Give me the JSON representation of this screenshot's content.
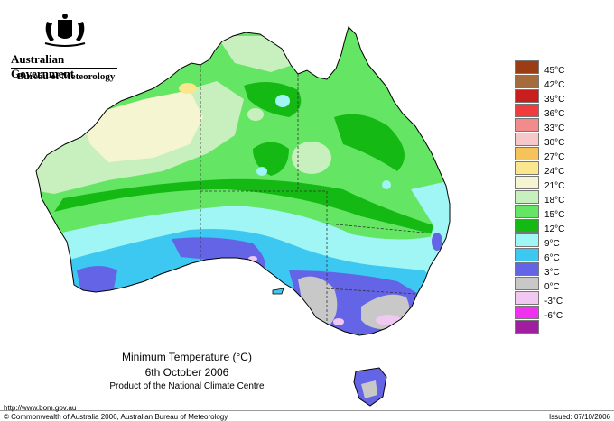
{
  "header": {
    "government": "Australian Government",
    "bureau": "Bureau of Meteorology"
  },
  "map": {
    "title": "Minimum Temperature (°C)",
    "date": "6th October 2006",
    "product": "Product of the National Climate Centre"
  },
  "legend": {
    "items": [
      {
        "label": "45°C",
        "color": "#9c3c14"
      },
      {
        "label": "42°C",
        "color": "#a66b3c"
      },
      {
        "label": "39°C",
        "color": "#c81e1e"
      },
      {
        "label": "36°C",
        "color": "#f03c3c"
      },
      {
        "label": "33°C",
        "color": "#f28c8c"
      },
      {
        "label": "30°C",
        "color": "#f6c8c8"
      },
      {
        "label": "27°C",
        "color": "#f5c35a"
      },
      {
        "label": "24°C",
        "color": "#fae68c"
      },
      {
        "label": "21°C",
        "color": "#f5f5d2"
      },
      {
        "label": "18°C",
        "color": "#c8f0be"
      },
      {
        "label": "15°C",
        "color": "#64e664"
      },
      {
        "label": "12°C",
        "color": "#14b914"
      },
      {
        "label": "9°C",
        "color": "#a0f5f5"
      },
      {
        "label": "6°C",
        "color": "#3cc8f0"
      },
      {
        "label": "3°C",
        "color": "#6464e6"
      },
      {
        "label": "0°C",
        "color": "#c8c8c8"
      },
      {
        "label": "-3°C",
        "color": "#f0c8f0"
      },
      {
        "label": "-6°C",
        "color": "#f032f0"
      },
      {
        "label": "",
        "color": "#a01ea0"
      }
    ]
  },
  "footer": {
    "url": "http://www.bom.gov.au",
    "copyright": "© Commonwealth of Australia 2006, Australian Bureau of Meteorology",
    "issued": "Issued: 07/10/2006"
  }
}
